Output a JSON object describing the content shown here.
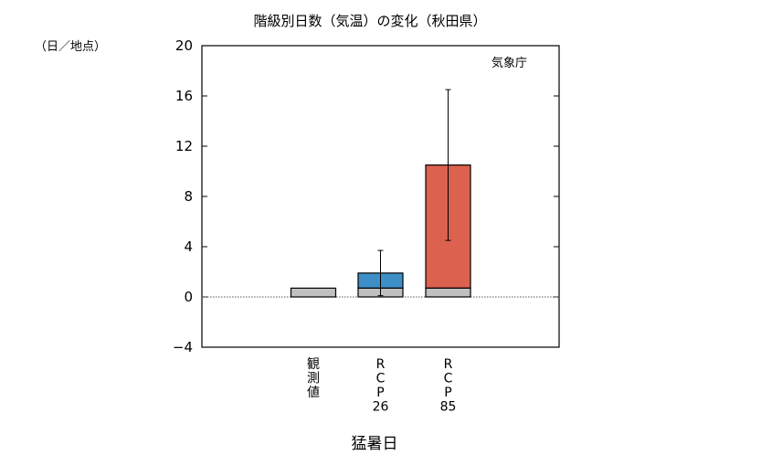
{
  "chart_data": {
    "type": "bar",
    "title": "階級別日数（気温）の変化（秋田県）",
    "ylabel": "（日／地点）",
    "xlabel": "猛暑日",
    "source_label": "気象庁",
    "ylim": [
      -4,
      20
    ],
    "yticks": [
      -4,
      0,
      4,
      8,
      12,
      16,
      20
    ],
    "categories": [
      {
        "label": [
          "観",
          "測",
          "値"
        ]
      },
      {
        "label": [
          "R",
          "C",
          "P",
          "26"
        ]
      },
      {
        "label": [
          "R",
          "C",
          "P",
          "85"
        ]
      }
    ],
    "baseline_value": 0.7,
    "series": [
      {
        "values": [
          0.7,
          0.7,
          0.7
        ],
        "color": "#c0c0c0"
      },
      {
        "values": [
          0,
          1.2,
          9.8
        ],
        "colors": [
          "#c0c0c0",
          "#3e8fc7",
          "#dc614f"
        ]
      }
    ],
    "totals": [
      0.7,
      1.9,
      10.5
    ],
    "error_bars": [
      null,
      {
        "low": 0.1,
        "high": 3.7
      },
      {
        "low": 4.5,
        "high": 16.5
      }
    ]
  }
}
